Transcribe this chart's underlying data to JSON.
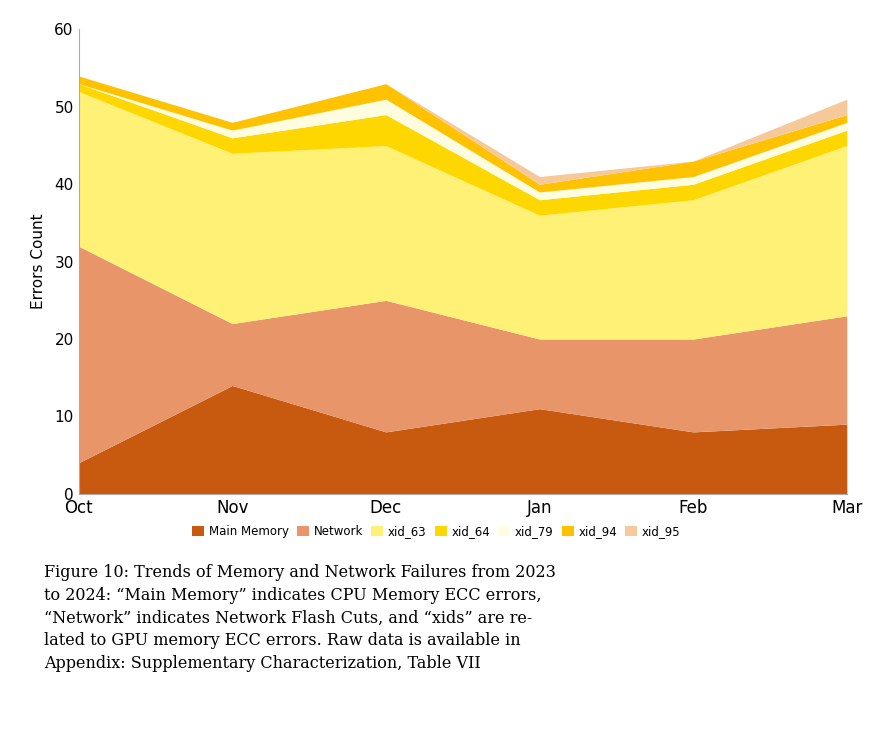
{
  "months": [
    "Oct",
    "Nov",
    "Dec",
    "Jan",
    "Feb",
    "Mar"
  ],
  "series_keys": [
    "Main Memory",
    "Network",
    "xid_63",
    "xid_64",
    "xid_79",
    "xid_94",
    "xid_95"
  ],
  "series_values": {
    "Main Memory": [
      4,
      14,
      8,
      11,
      8,
      9
    ],
    "Network": [
      28,
      8,
      17,
      9,
      12,
      14
    ],
    "xid_63": [
      20,
      22,
      20,
      16,
      18,
      22
    ],
    "xid_64": [
      1,
      2,
      4,
      2,
      2,
      2
    ],
    "xid_79": [
      0,
      1,
      2,
      1,
      1,
      1
    ],
    "xid_94": [
      1,
      1,
      2,
      1,
      2,
      1
    ],
    "xid_95": [
      0,
      0,
      0,
      1,
      0,
      2
    ]
  },
  "colors": {
    "Main Memory": "#C85A10",
    "Network": "#E8956A",
    "xid_63": "#FFF176",
    "xid_64": "#FFD700",
    "xid_79": "#FFFDE0",
    "xid_94": "#FFC200",
    "xid_95": "#F5C99A"
  },
  "ylabel": "Errors Count",
  "ylim": [
    0,
    60
  ],
  "yticks": [
    0,
    10,
    20,
    30,
    40,
    50,
    60
  ],
  "caption_bold": "Figure 10: ",
  "caption": "Trends of Memory and Network Failures from 2023 to 2024: “Main Memory” indicates CPU Memory ECC errors, “Network” indicates Network Flash Cuts, and “xids” are re- lated to GPU memory ECC errors. Raw data is available in Appendix: Supplementary Characterization, Table VII"
}
